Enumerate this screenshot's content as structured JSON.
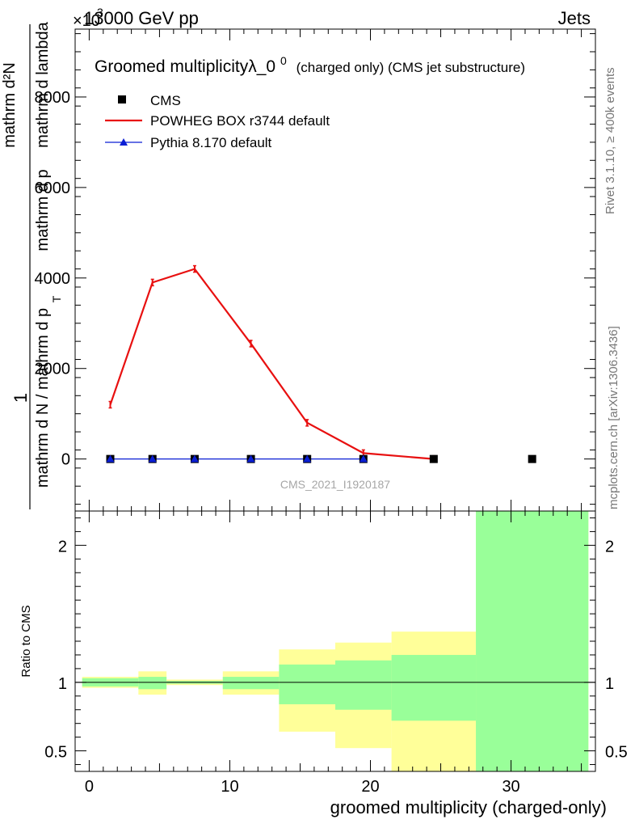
{
  "header": {
    "top_left": "13000 GeV pp",
    "top_right": "Jets",
    "exponent": "×10",
    "exponent_power": "3"
  },
  "side_labels": {
    "rivet": "Rivet 3.1.10, ≥ 400k events",
    "mcplots": "mcplots.cern.ch [arXiv:1306.3436]"
  },
  "watermark": "CMS_2021_I1920187",
  "colors": {
    "powheg": "#e81010",
    "pythia": "#0a1ed4",
    "band_inner": "#99ff99",
    "band_outer": "#ffff99"
  },
  "chart_data": [
    {
      "type": "line",
      "title_main": "Groomed multiplicityλ_0",
      "title_sup": "0",
      "title_sub": "(charged only) (CMS jet substructure)",
      "ylabel_top": "mathrm d²N",
      "ylabel_num": "1",
      "ylabel_den": "mathrm d N / mathrm d p",
      "ylabel_right": "mathrm d p",
      "ylabel_right2": "mathrm d lambda",
      "ylabel_sub": "T",
      "ylim": [
        -1150,
        9500
      ],
      "xlim": [
        -1,
        36
      ],
      "yticks": [
        {
          "value": 0,
          "label": "0"
        },
        {
          "value": 2000,
          "label": "2000"
        },
        {
          "value": 4000,
          "label": "4000"
        },
        {
          "value": 6000,
          "label": "6000"
        },
        {
          "value": 8000,
          "label": "8000"
        }
      ],
      "legend_position": "top-left",
      "series": [
        {
          "name": "CMS",
          "style": "markers",
          "x": [
            1.5,
            4.5,
            7.5,
            11.5,
            15.5,
            19.5,
            24.5,
            31.5
          ],
          "y": [
            0,
            0,
            0,
            0,
            0,
            0,
            0,
            0
          ]
        },
        {
          "name": "POWHEG BOX r3744 default",
          "style": "line",
          "x": [
            1.5,
            4.5,
            7.5,
            11.5,
            15.5,
            19.5,
            24.5
          ],
          "y": [
            1200,
            3900,
            4200,
            2550,
            800,
            130,
            0
          ]
        },
        {
          "name": "Pythia 8.170 default",
          "style": "line-triangle",
          "x": [
            1.5,
            4.5,
            7.5,
            11.5,
            15.5,
            19.5
          ],
          "y": [
            0,
            0,
            0,
            0,
            0,
            0
          ]
        }
      ]
    },
    {
      "type": "area",
      "ylabel": "Ratio to CMS",
      "xlabel": "groomed multiplicity (charged-only)",
      "ylim": [
        0.35,
        2.25
      ],
      "xlim": [
        -1,
        36
      ],
      "yticks": [
        {
          "value": 0.5,
          "label": "0.5"
        },
        {
          "value": 1,
          "label": "1"
        },
        {
          "value": 2,
          "label": "2"
        }
      ],
      "xticks": [
        {
          "value": 0,
          "label": "0"
        },
        {
          "value": 10,
          "label": "10"
        },
        {
          "value": 20,
          "label": "20"
        },
        {
          "value": 30,
          "label": "30"
        }
      ],
      "bins": [
        {
          "lo": -0.5,
          "hi": 3.5,
          "inner": [
            0.97,
            1.03
          ],
          "outer": [
            0.96,
            1.04
          ]
        },
        {
          "lo": 3.5,
          "hi": 5.5,
          "inner": [
            0.95,
            1.04
          ],
          "outer": [
            0.91,
            1.08
          ]
        },
        {
          "lo": 5.5,
          "hi": 9.5,
          "inner": [
            0.99,
            1.01
          ],
          "outer": [
            0.98,
            1.02
          ]
        },
        {
          "lo": 9.5,
          "hi": 13.5,
          "inner": [
            0.95,
            1.04
          ],
          "outer": [
            0.91,
            1.08
          ]
        },
        {
          "lo": 13.5,
          "hi": 17.5,
          "inner": [
            0.84,
            1.13
          ],
          "outer": [
            0.64,
            1.24
          ]
        },
        {
          "lo": 17.5,
          "hi": 21.5,
          "inner": [
            0.8,
            1.16
          ],
          "outer": [
            0.52,
            1.29
          ]
        },
        {
          "lo": 21.5,
          "hi": 27.5,
          "inner": [
            0.72,
            1.2
          ],
          "outer": [
            0.35,
            1.37
          ]
        },
        {
          "lo": 27.5,
          "hi": 35.5,
          "inner": [
            0.35,
            2.25
          ],
          "outer": [
            0.35,
            2.25
          ]
        }
      ]
    }
  ]
}
